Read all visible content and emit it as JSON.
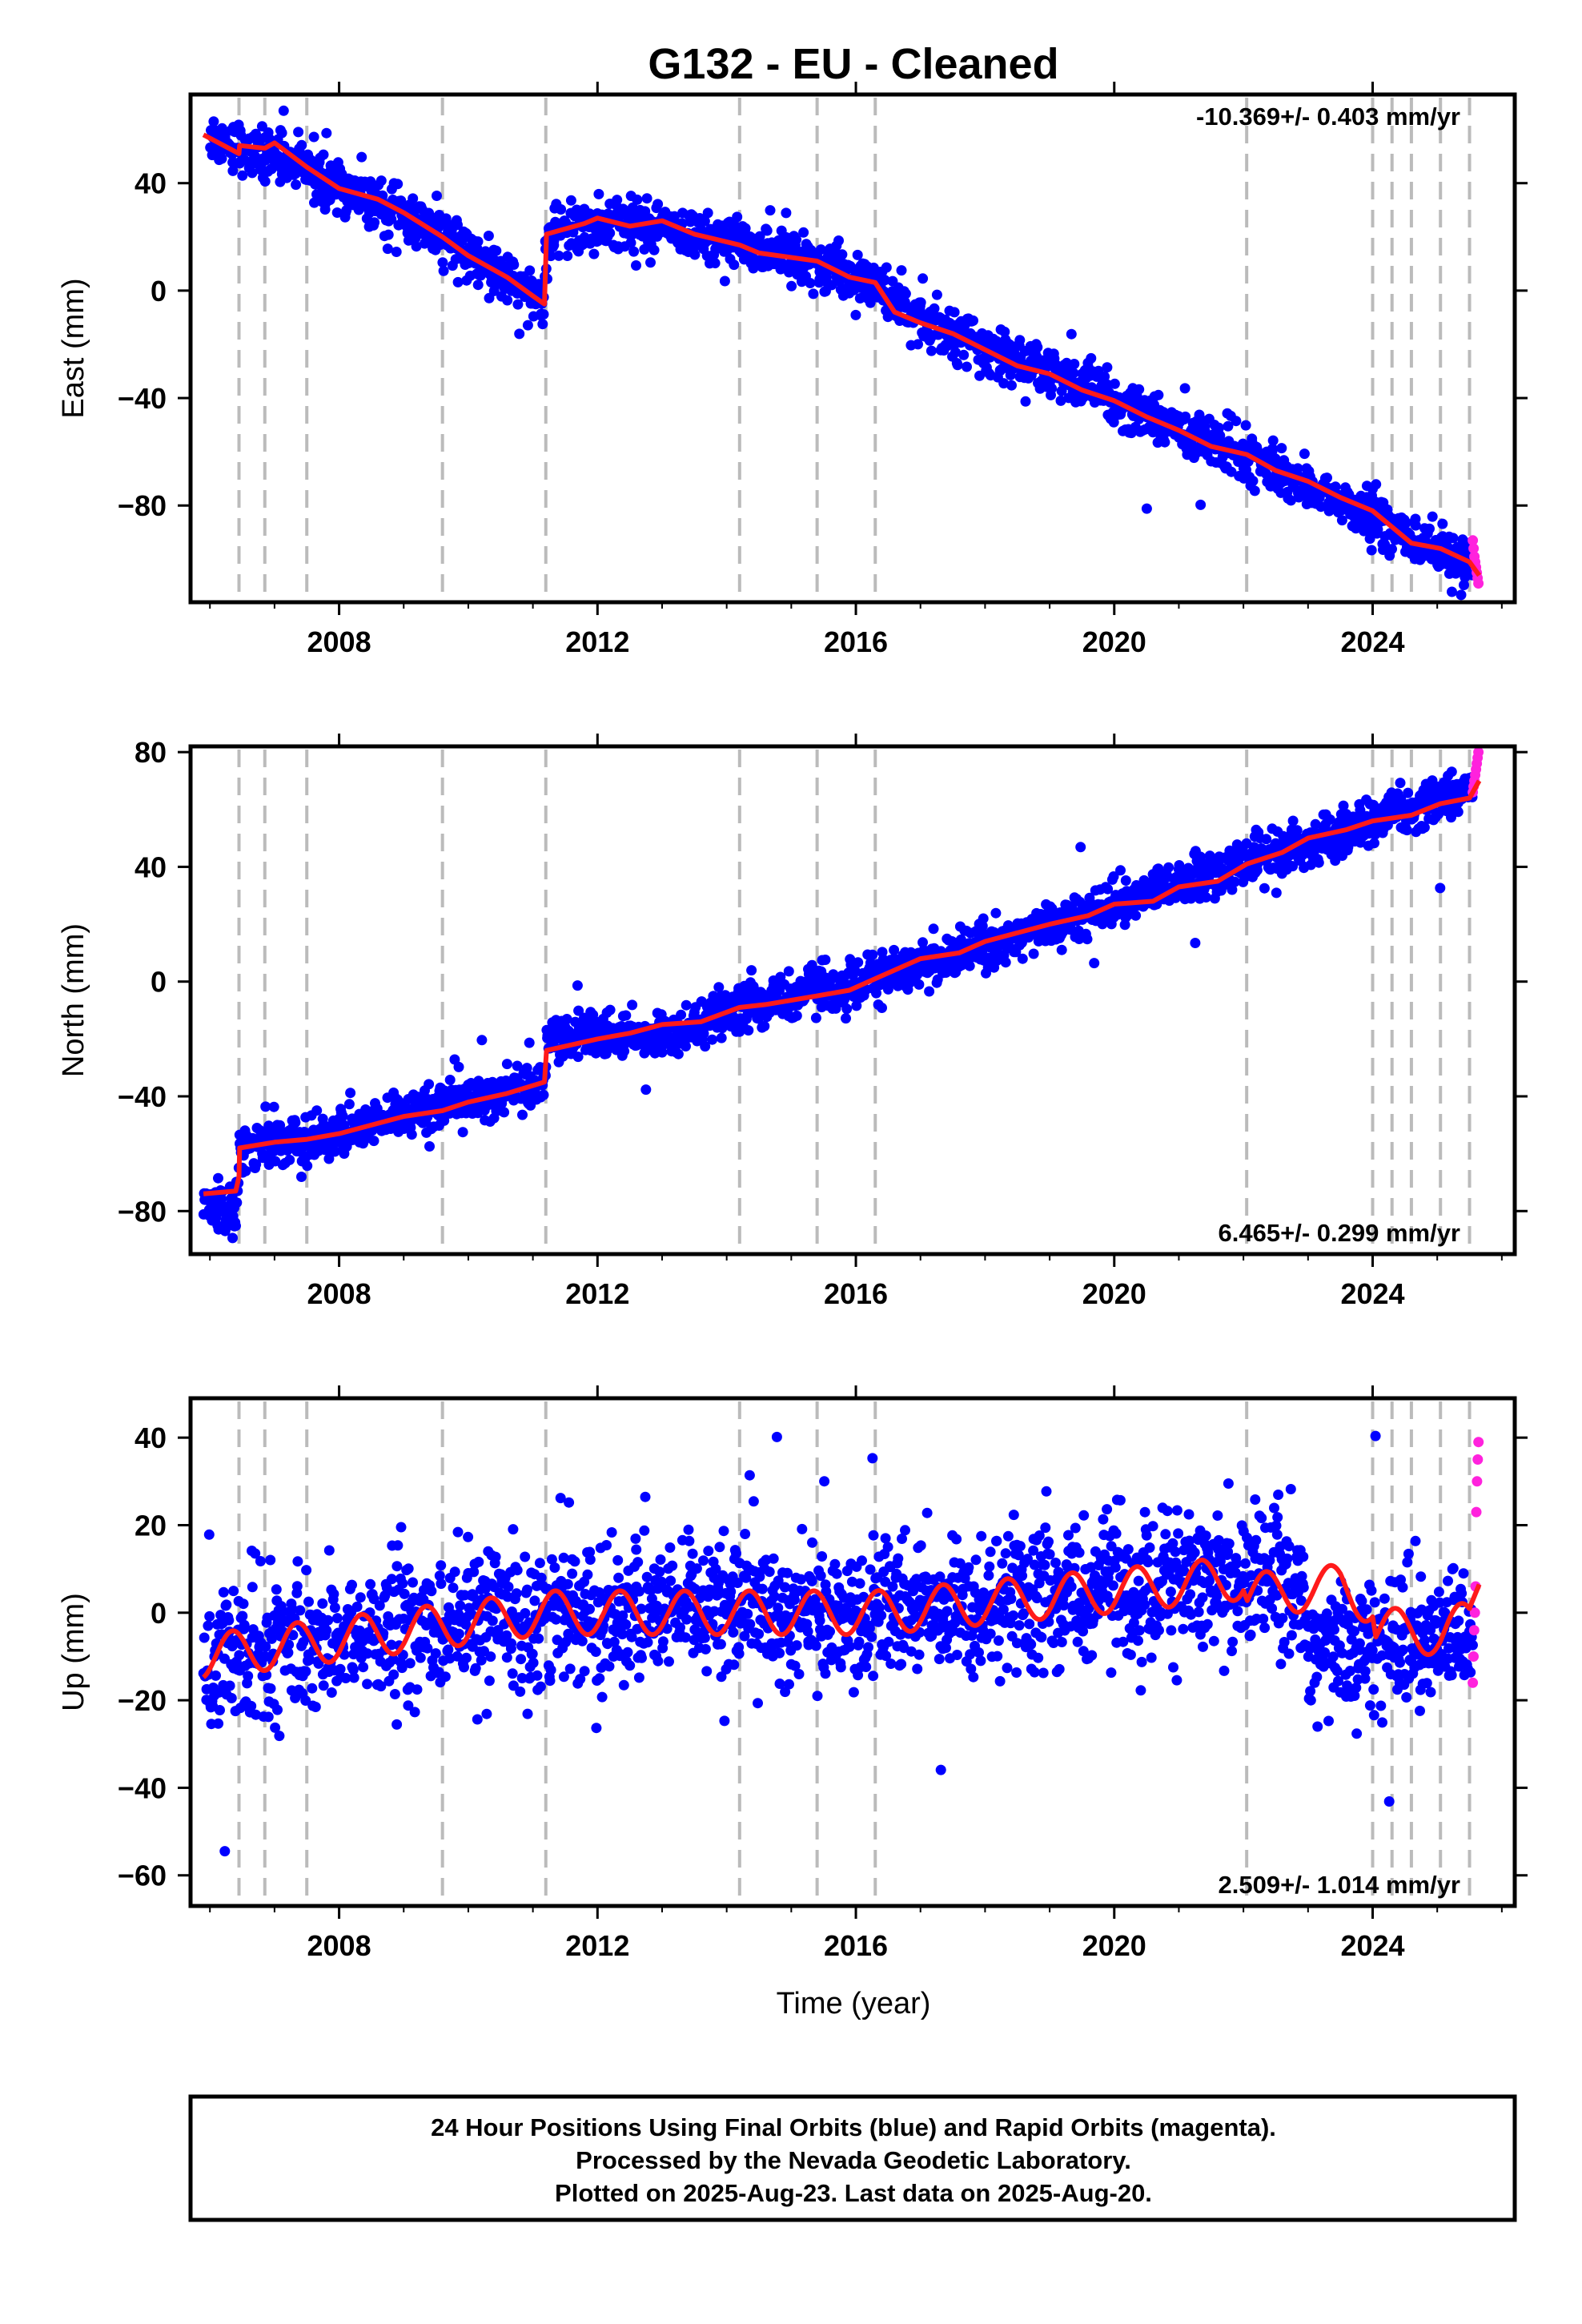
{
  "title": "G132  - EU - Cleaned",
  "colors": {
    "final": "#0000ff",
    "rapid": "#ff22dd",
    "model": "#ff1a1a",
    "break": "#bbbbbb",
    "frame": "#000000"
  },
  "footer": {
    "line1": "24 Hour Positions Using Final Orbits (blue) and Rapid Orbits (magenta).",
    "line2": "Processed by the Nevada Geodetic Laboratory.",
    "line3": "Plotted on 2025-Aug-23. Last data on 2025-Aug-20."
  },
  "chart_data": [
    {
      "type": "scatter",
      "ylabel": "East (mm)",
      "xlabel": "",
      "rate": "-10.369+/- 0.403 mm/yr",
      "rate_position": "top-right",
      "xlim": [
        2005.7,
        2026.2
      ],
      "ylim": [
        -116,
        73
      ],
      "xticks": [
        2008,
        2012,
        2016,
        2020,
        2024
      ],
      "yticks": [
        40,
        0,
        -40,
        -80
      ],
      "tick_labels": {
        "x": [
          "2008",
          "2012",
          "2016",
          "2020",
          "2024"
        ],
        "y": [
          "40",
          "0",
          "−40",
          "−80"
        ]
      },
      "breaks": [
        2006.45,
        2006.85,
        2007.5,
        2009.6,
        2011.2,
        2014.2,
        2015.4,
        2016.3,
        2022.05,
        2024.0,
        2024.3,
        2024.6,
        2025.05,
        2025.5
      ],
      "model": [
        [
          2005.9,
          58
        ],
        [
          2006.45,
          51
        ],
        [
          2006.46,
          54
        ],
        [
          2006.85,
          53
        ],
        [
          2007.0,
          55
        ],
        [
          2007.5,
          46
        ],
        [
          2008.0,
          38
        ],
        [
          2008.6,
          34
        ],
        [
          2009.0,
          29
        ],
        [
          2009.6,
          20
        ],
        [
          2010.0,
          13
        ],
        [
          2010.6,
          5
        ],
        [
          2011.0,
          -2
        ],
        [
          2011.18,
          -5
        ],
        [
          2011.21,
          21
        ],
        [
          2011.8,
          25
        ],
        [
          2012.0,
          27
        ],
        [
          2012.5,
          24
        ],
        [
          2013.0,
          26
        ],
        [
          2013.5,
          21
        ],
        [
          2014.2,
          17
        ],
        [
          2014.5,
          14
        ],
        [
          2015.4,
          11
        ],
        [
          2015.9,
          5
        ],
        [
          2016.3,
          3
        ],
        [
          2016.6,
          -8
        ],
        [
          2017.0,
          -12
        ],
        [
          2017.5,
          -16
        ],
        [
          2018.0,
          -22
        ],
        [
          2018.5,
          -28
        ],
        [
          2019.0,
          -31
        ],
        [
          2019.5,
          -37
        ],
        [
          2020.0,
          -41
        ],
        [
          2020.5,
          -47
        ],
        [
          2021.0,
          -52
        ],
        [
          2021.5,
          -58
        ],
        [
          2022.05,
          -61
        ],
        [
          2022.5,
          -67
        ],
        [
          2023.0,
          -71
        ],
        [
          2023.5,
          -77
        ],
        [
          2024.0,
          -82
        ],
        [
          2024.3,
          -88
        ],
        [
          2024.6,
          -94
        ],
        [
          2025.05,
          -96
        ],
        [
          2025.5,
          -101
        ],
        [
          2025.65,
          -106
        ]
      ],
      "scatter": {
        "band": [
          [
            2006.0,
            58
          ],
          [
            2006.5,
            53
          ],
          [
            2007.5,
            45
          ],
          [
            2009.5,
            22
          ],
          [
            2011.15,
            -4
          ],
          [
            2011.25,
            21
          ],
          [
            2012.5,
            25
          ],
          [
            2014.2,
            17
          ],
          [
            2016.3,
            4
          ],
          [
            2016.6,
            -6
          ],
          [
            2019.0,
            -31
          ],
          [
            2022.0,
            -61
          ],
          [
            2025.6,
            -104
          ]
        ],
        "spread": 4.5,
        "final_points": 2100,
        "rapid_range": [
          2025.55,
          2025.65
        ],
        "rapid_values": [
          -93,
          -96,
          -99,
          -101,
          -103,
          -105,
          -107,
          -109
        ]
      }
    },
    {
      "type": "scatter",
      "ylabel": "North (mm)",
      "xlabel": "",
      "rate": "6.465+/- 0.299 mm/yr",
      "rate_position": "bottom-right",
      "xlim": [
        2005.7,
        2026.2
      ],
      "ylim": [
        -95,
        82
      ],
      "xticks": [
        2008,
        2012,
        2016,
        2020,
        2024
      ],
      "yticks": [
        80,
        40,
        0,
        -40,
        -80
      ],
      "tick_labels": {
        "x": [
          "2008",
          "2012",
          "2016",
          "2020",
          "2024"
        ],
        "y": [
          "80",
          "40",
          "0",
          "−40",
          "−80"
        ]
      },
      "breaks": [
        2006.45,
        2006.85,
        2007.5,
        2009.6,
        2011.2,
        2014.2,
        2015.4,
        2016.3,
        2022.05,
        2024.0,
        2024.3,
        2024.6,
        2025.05,
        2025.5
      ],
      "model": [
        [
          2005.9,
          -74
        ],
        [
          2006.4,
          -73
        ],
        [
          2006.45,
          -68
        ],
        [
          2006.46,
          -58
        ],
        [
          2007.0,
          -56
        ],
        [
          2007.5,
          -55
        ],
        [
          2008.0,
          -53
        ],
        [
          2009.0,
          -47
        ],
        [
          2009.6,
          -45
        ],
        [
          2010.0,
          -42
        ],
        [
          2010.6,
          -39
        ],
        [
          2011.18,
          -35
        ],
        [
          2011.21,
          -24
        ],
        [
          2012.0,
          -20
        ],
        [
          2012.5,
          -18
        ],
        [
          2013.0,
          -15
        ],
        [
          2013.6,
          -14
        ],
        [
          2014.2,
          -9
        ],
        [
          2014.6,
          -8
        ],
        [
          2015.4,
          -5
        ],
        [
          2015.9,
          -3
        ],
        [
          2016.3,
          1
        ],
        [
          2017.0,
          8
        ],
        [
          2017.6,
          10
        ],
        [
          2018.0,
          14
        ],
        [
          2019.0,
          20
        ],
        [
          2019.6,
          23
        ],
        [
          2020.0,
          27
        ],
        [
          2020.6,
          28
        ],
        [
          2021.0,
          33
        ],
        [
          2021.6,
          35
        ],
        [
          2022.05,
          41
        ],
        [
          2022.6,
          45
        ],
        [
          2023.0,
          50
        ],
        [
          2023.6,
          53
        ],
        [
          2024.0,
          56
        ],
        [
          2024.6,
          58
        ],
        [
          2025.05,
          62
        ],
        [
          2025.5,
          64
        ],
        [
          2025.65,
          70
        ]
      ],
      "scatter": {
        "band": [
          [
            2005.9,
            -79
          ],
          [
            2006.4,
            -78
          ],
          [
            2006.46,
            -58
          ],
          [
            2008.0,
            -53
          ],
          [
            2011.18,
            -35
          ],
          [
            2011.21,
            -19
          ],
          [
            2013.0,
            -19
          ],
          [
            2014.2,
            -9
          ],
          [
            2016.3,
            1
          ],
          [
            2019.0,
            20
          ],
          [
            2022.05,
            41
          ],
          [
            2024.0,
            56
          ],
          [
            2025.6,
            68
          ]
        ],
        "spread": 4.0,
        "final_points": 2100,
        "rapid_range": [
          2025.55,
          2025.65
        ],
        "rapid_values": [
          66,
          68,
          70,
          72,
          74,
          76,
          78,
          80
        ]
      }
    },
    {
      "type": "scatter",
      "ylabel": "Up (mm)",
      "xlabel": "Time (year)",
      "rate": "2.509+/- 1.014 mm/yr",
      "rate_position": "bottom-right",
      "xlim": [
        2005.7,
        2026.2
      ],
      "ylim": [
        -67,
        49
      ],
      "xticks": [
        2008,
        2012,
        2016,
        2020,
        2024
      ],
      "yticks": [
        40,
        20,
        0,
        -20,
        -40,
        -60
      ],
      "tick_labels": {
        "x": [
          "2008",
          "2012",
          "2016",
          "2020",
          "2024"
        ],
        "y": [
          "40",
          "20",
          "0",
          "−20",
          "−40",
          "−60"
        ]
      },
      "breaks": [
        2006.45,
        2006.85,
        2007.5,
        2009.6,
        2011.2,
        2014.2,
        2015.4,
        2016.3,
        2022.05,
        2024.0,
        2024.3,
        2024.6,
        2025.05,
        2025.5
      ],
      "model_trend": [
        [
          2005.9,
          -10
        ],
        [
          2011.2,
          0
        ],
        [
          2016.3,
          0
        ],
        [
          2020.0,
          5
        ],
        [
          2022.0,
          8
        ],
        [
          2022.06,
          4
        ],
        [
          2023.5,
          6
        ],
        [
          2024.0,
          2
        ],
        [
          2024.05,
          -4
        ],
        [
          2024.6,
          -4
        ],
        [
          2025.05,
          -5
        ],
        [
          2025.5,
          -2
        ],
        [
          2025.65,
          8
        ]
      ],
      "seasonal_amplitude": 5,
      "scatter": {
        "band": [
          [
            2005.9,
            -10
          ],
          [
            2011.2,
            0
          ],
          [
            2016.3,
            0
          ],
          [
            2020.0,
            5
          ],
          [
            2022.9,
            9
          ],
          [
            2023.0,
            -8
          ],
          [
            2025.6,
            -5
          ]
        ],
        "spread": 8,
        "final_points": 2100,
        "rapid_range": [
          2025.55,
          2025.65
        ],
        "rapid_values": [
          -16,
          -10,
          -4,
          0,
          6,
          23,
          30,
          35,
          39
        ]
      }
    }
  ]
}
